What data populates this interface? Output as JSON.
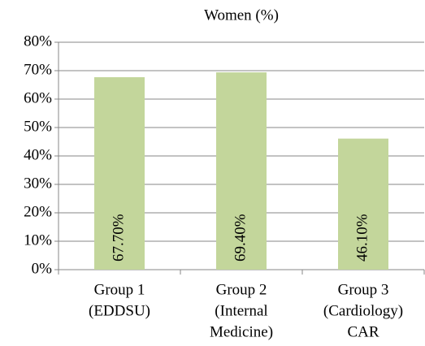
{
  "chart_data": {
    "type": "bar",
    "title": "Women (%)",
    "categories": [
      [
        "Group 1",
        "(EDDSU)"
      ],
      [
        "Group 2",
        "(Internal",
        "Medicine)"
      ],
      [
        "Group 3",
        "(Cardiology)",
        "CAR"
      ]
    ],
    "values": [
      67.7,
      69.4,
      46.1
    ],
    "value_labels": [
      "67.70%",
      "69.40%",
      "46.10%"
    ],
    "color": "#c3d69b",
    "ylim": [
      0,
      80
    ],
    "yticks": [
      {
        "value": 0,
        "label": "0%"
      },
      {
        "value": 10,
        "label": "10%"
      },
      {
        "value": 20,
        "label": "20%"
      },
      {
        "value": 30,
        "label": "30%"
      },
      {
        "value": 40,
        "label": "40%"
      },
      {
        "value": 50,
        "label": "50%"
      },
      {
        "value": 60,
        "label": "60%"
      },
      {
        "value": 70,
        "label": "70%"
      },
      {
        "value": 80,
        "label": "80%"
      }
    ],
    "grid": true
  }
}
